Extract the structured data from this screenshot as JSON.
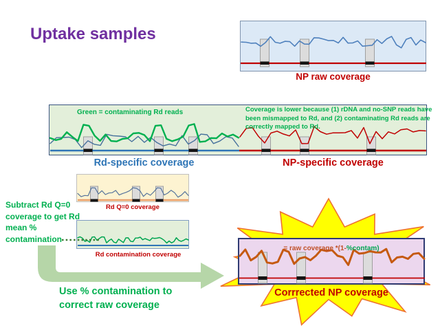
{
  "title": "Uptake samples",
  "np_raw": {
    "label": "NP raw coverage"
  },
  "mid": {
    "annotation_left": "Green = contaminating Rd reads",
    "annotation_right": "Coverage is lower because (1) rDNA and no-SNP reads have been mismapped to Rd, and (2) contaminating Rd reads are correctly mapped to Rd.",
    "label_left": "Rd-specific coverage",
    "label_right": "NP-specific coverage"
  },
  "q0": {
    "label": "Rd Q=0 coverage"
  },
  "contam": {
    "label": "Rd contamination coverage"
  },
  "corrected": {
    "formula_prefix": "= raw coverage *(1-",
    "formula_suffix": "%contam)",
    "label": "Corrrected NP coverage"
  },
  "notes": {
    "subtract": "Subtract Rd Q=0 coverage to get Rd mean % contamination",
    "use_contamination": "Use % contamination to correct raw coverage"
  },
  "colors": {
    "title": "#7030a0",
    "red": "#c00000",
    "green": "#00b050",
    "blue": "#2e75b6",
    "rd_line": "#4f81bd",
    "contamination_line": "#00a551",
    "corrected_line": "#c55a11",
    "formula_red": "#c05028",
    "q0_baseline": "#e9a06e",
    "star_fill": "#ffff00",
    "star_outline": "#ee7130",
    "arrow_green": "#b6d6a8"
  }
}
